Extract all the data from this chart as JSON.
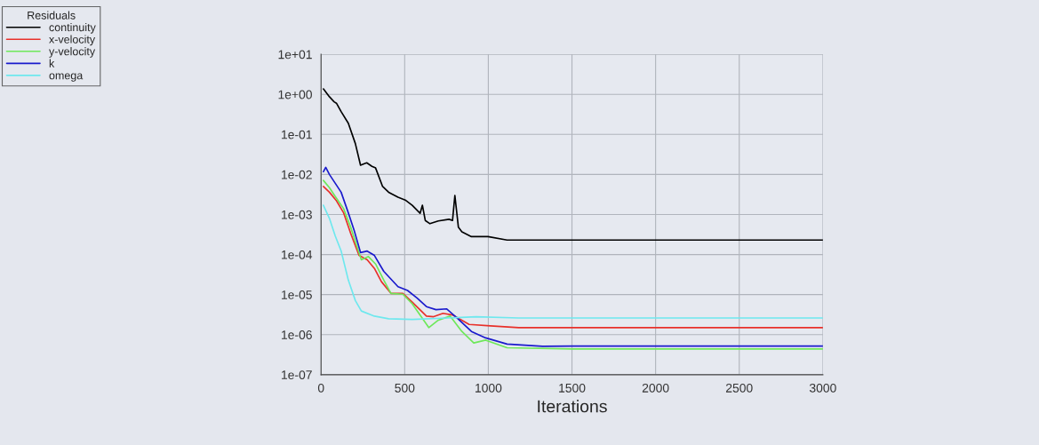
{
  "chart_data": {
    "type": "line",
    "xlabel": "Iterations",
    "legend_title": "Residuals",
    "legend": "top left",
    "log": "y",
    "grid": true,
    "marker": "none",
    "line_style": "solid",
    "xlim": [
      0,
      3000
    ],
    "xticks": [
      0,
      500,
      1000,
      1500,
      2000,
      2500,
      3000
    ],
    "ylim": [
      1e-07,
      10
    ],
    "yticks": [
      {
        "value": 10,
        "label": "1e+01"
      },
      {
        "value": 1,
        "label": "1e+00"
      },
      {
        "value": 0.1,
        "label": "1e-01"
      },
      {
        "value": 0.01,
        "label": "1e-02"
      },
      {
        "value": 0.001,
        "label": "1e-03"
      },
      {
        "value": 0.0001,
        "label": "1e-04"
      },
      {
        "value": 1e-05,
        "label": "1e-05"
      },
      {
        "value": 1e-06,
        "label": "1e-06"
      },
      {
        "value": 1e-07,
        "label": "1e-07"
      }
    ],
    "series": [
      {
        "name": "continuity",
        "color": "#000000",
        "x": [
          14,
          50,
          78,
          92,
          120,
          163,
          205,
          236,
          273,
          304,
          326,
          368,
          404,
          460,
          503,
          545,
          592,
          606,
          623,
          651,
          701,
          765,
          786,
          800,
          821,
          842,
          899,
          998,
          1112,
          1500,
          2000,
          2500,
          3000
        ],
        "values": [
          1.37,
          0.87,
          0.65,
          0.6,
          0.37,
          0.19,
          0.059,
          0.017,
          0.0195,
          0.016,
          0.0145,
          0.005,
          0.0036,
          0.0027,
          0.0023,
          0.0017,
          0.00107,
          0.0017,
          0.00071,
          0.00059,
          0.00069,
          0.00076,
          0.00071,
          0.003,
          0.00048,
          0.00037,
          0.00028,
          0.00028,
          0.00023,
          0.00023,
          0.00023,
          0.00023,
          0.00023
        ]
      },
      {
        "name": "x-velocity",
        "color": "#e8302a",
        "x": [
          14,
          50,
          92,
          135,
          177,
          227,
          276,
          319,
          361,
          418,
          489,
          545,
          630,
          673,
          729,
          786,
          885,
          1012,
          1182,
          1500,
          2000,
          2500,
          3000
        ],
        "values": [
          0.005,
          0.0036,
          0.0022,
          0.0011,
          0.00034,
          9.5e-05,
          7.4e-05,
          4.5e-05,
          2.1e-05,
          1.07e-05,
          1.07e-05,
          6.5e-06,
          2.9e-06,
          2.8e-06,
          3.4e-06,
          3.1e-06,
          1.8e-06,
          1.66e-06,
          1.5e-06,
          1.5e-06,
          1.5e-06,
          1.5e-06,
          1.5e-06
        ]
      },
      {
        "name": "y-velocity",
        "color": "#6ee85a",
        "x": [
          14,
          50,
          85,
          135,
          177,
          241,
          283,
          326,
          375,
          418,
          489,
          545,
          644,
          701,
          772,
          842,
          913,
          984,
          1112,
          1500,
          2000,
          2500,
          3000
        ],
        "values": [
          0.0071,
          0.0047,
          0.0028,
          0.0014,
          0.00048,
          7.4e-05,
          8.9e-05,
          5.8e-05,
          2.3e-05,
          1.07e-05,
          1.02e-05,
          5.9e-06,
          1.5e-06,
          2.3e-06,
          2.9e-06,
          1.2e-06,
          6.2e-07,
          7.3e-07,
          4.7e-07,
          4.4e-07,
          4.4e-07,
          4.4e-07,
          4.4e-07
        ]
      },
      {
        "name": "k",
        "color": "#1a1acc",
        "x": [
          14,
          28,
          50,
          85,
          120,
          163,
          198,
          236,
          276,
          319,
          375,
          460,
          517,
          573,
          630,
          687,
          750,
          814,
          899,
          984,
          1112,
          1324,
          1500,
          2000,
          2500,
          3000
        ],
        "values": [
          0.0117,
          0.015,
          0.01,
          0.006,
          0.0036,
          0.0011,
          0.0004,
          0.000112,
          0.000122,
          9.5e-05,
          3.8e-05,
          1.58e-05,
          1.27e-05,
          8.3e-06,
          5e-06,
          4.2e-06,
          4.4e-06,
          2.6e-06,
          1.2e-06,
          8.3e-07,
          5.8e-07,
          5.1e-07,
          5.2e-07,
          5.2e-07,
          5.2e-07,
          5.2e-07
        ]
      },
      {
        "name": "omega",
        "color": "#6ee8ee",
        "x": [
          14,
          50,
          85,
          120,
          163,
          205,
          241,
          319,
          404,
          545,
          758,
          927,
          1182,
          1500,
          2000,
          2500,
          3000
        ],
        "values": [
          0.0017,
          0.0008,
          0.00029,
          0.000123,
          2.3e-05,
          7.1e-06,
          3.9e-06,
          2.9e-06,
          2.5e-06,
          2.4e-06,
          2.6e-06,
          2.8e-06,
          2.6e-06,
          2.6e-06,
          2.6e-06,
          2.6e-06,
          2.6e-06
        ]
      }
    ]
  }
}
